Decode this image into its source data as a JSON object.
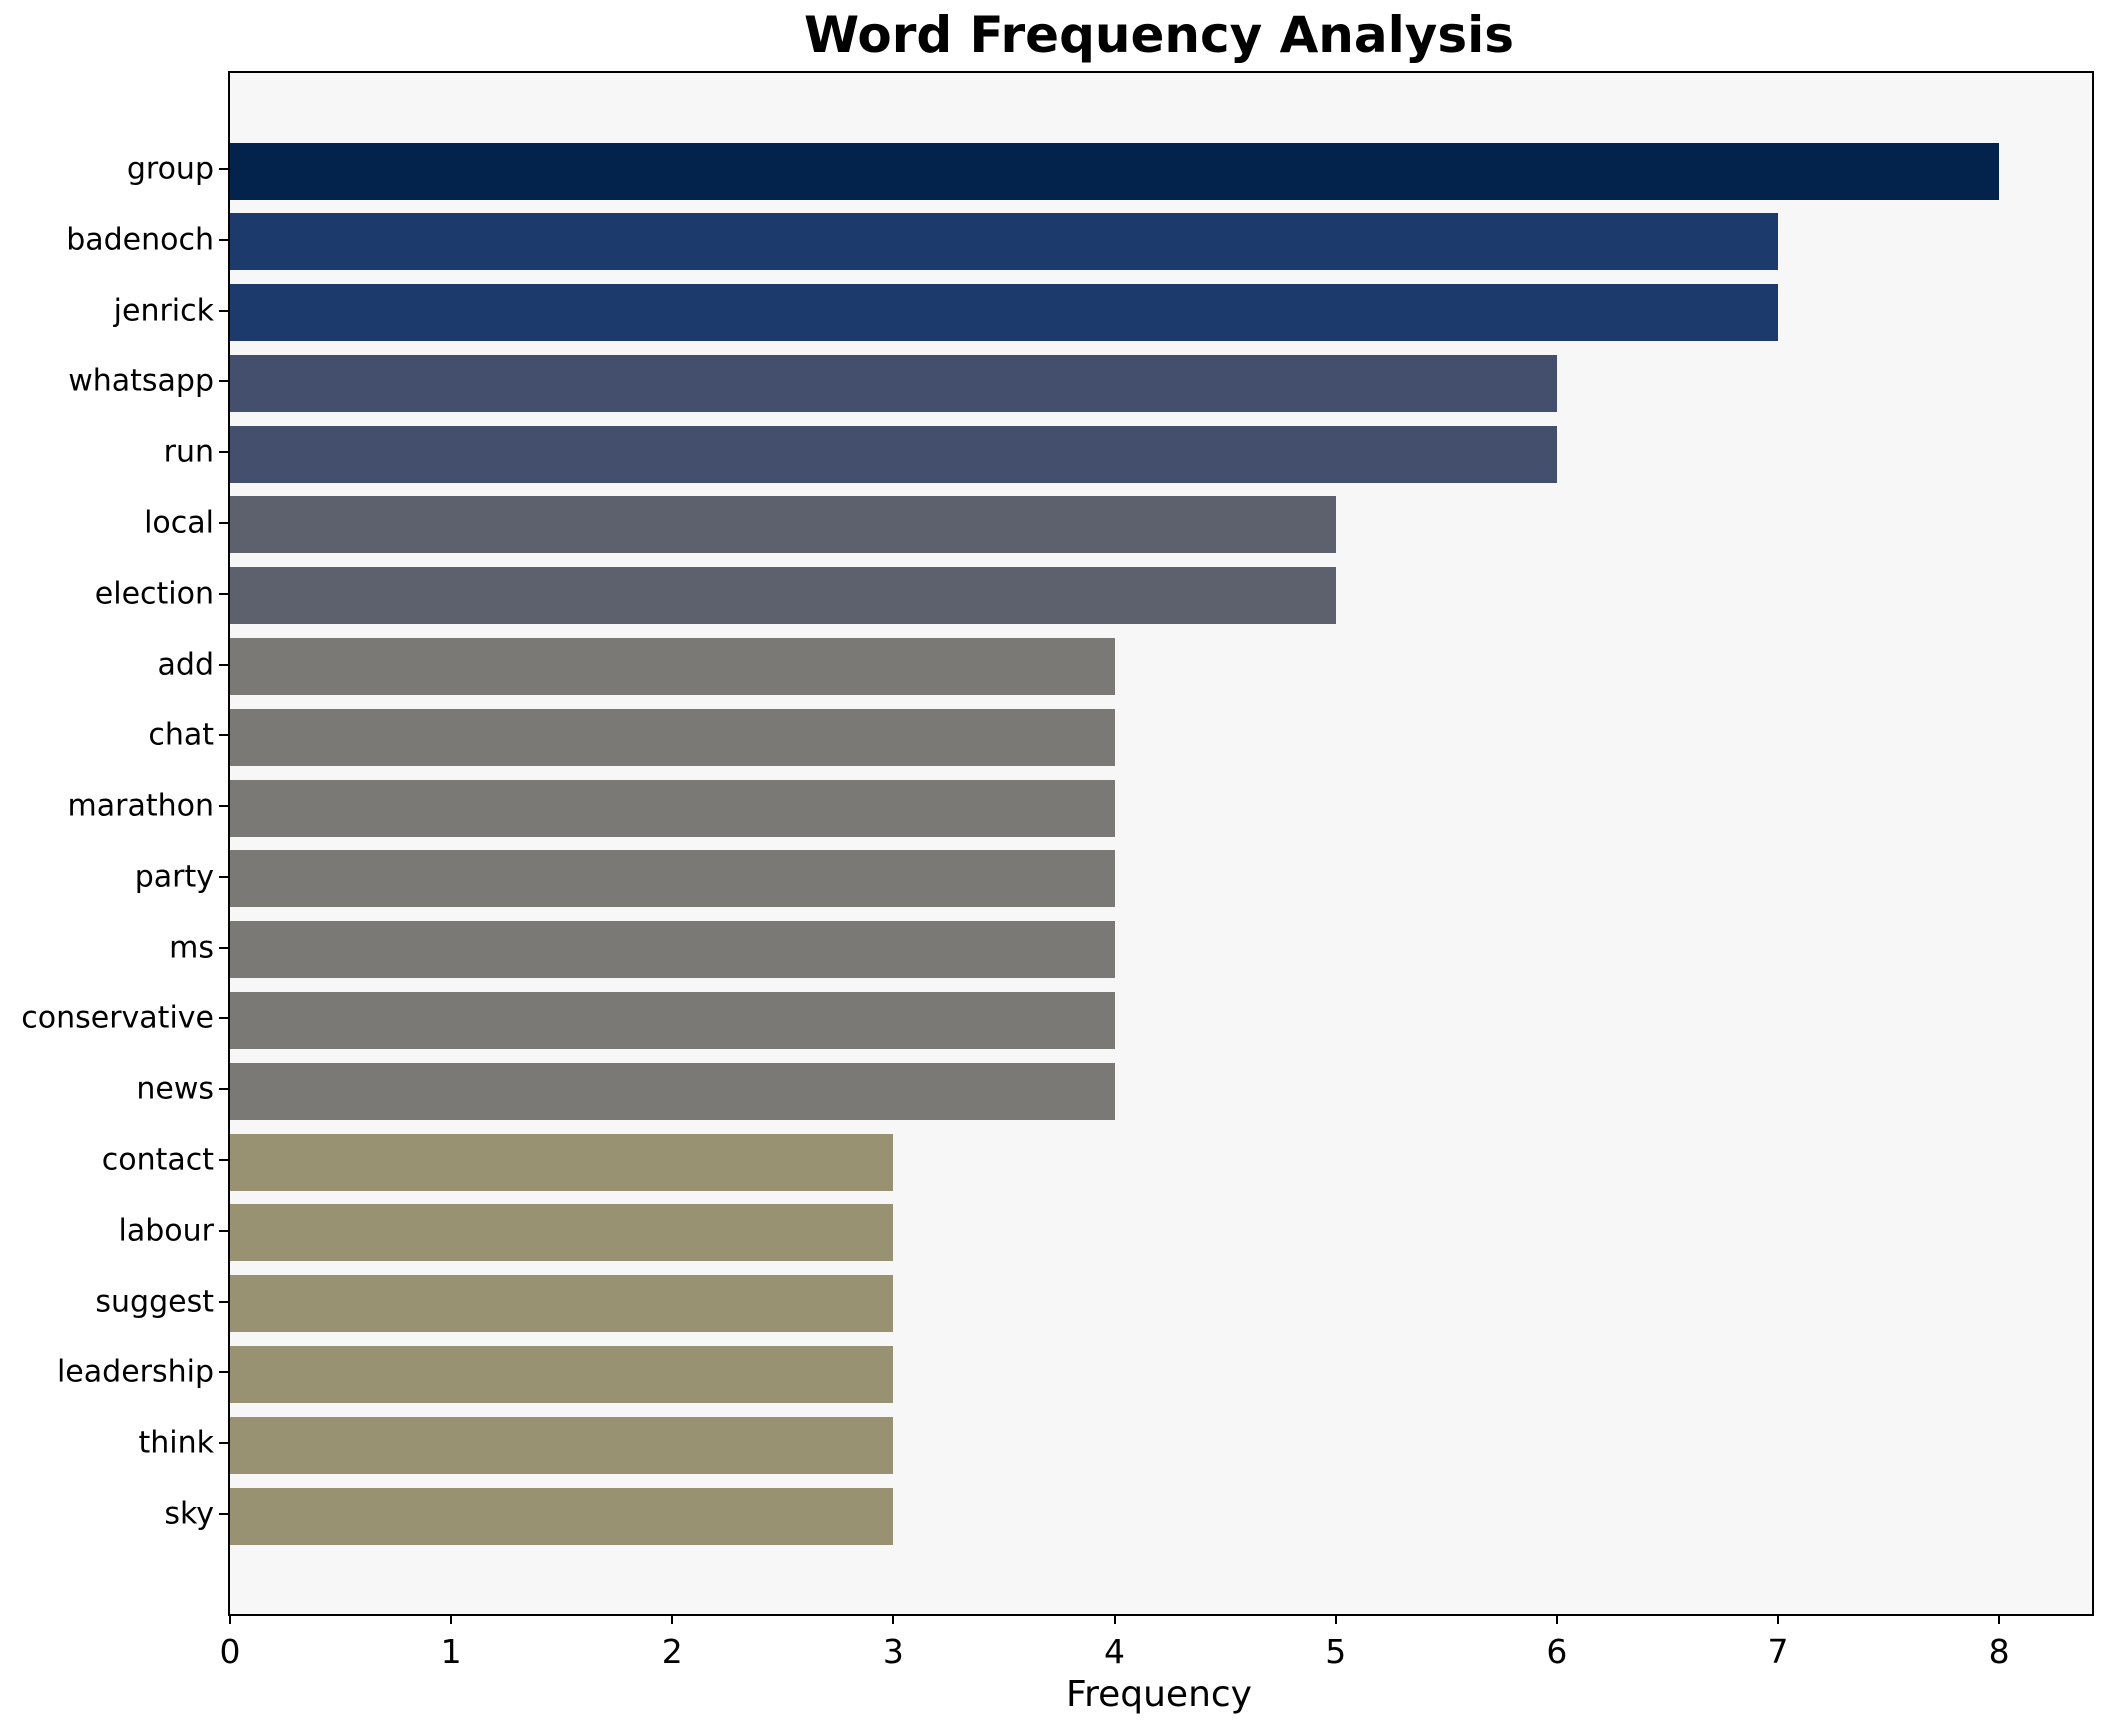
{
  "chart_data": {
    "type": "bar",
    "orientation": "horizontal",
    "title": "Word Frequency Analysis",
    "xlabel": "Frequency",
    "ylabel": "",
    "categories": [
      "group",
      "badenoch",
      "jenrick",
      "whatsapp",
      "run",
      "local",
      "election",
      "add",
      "chat",
      "marathon",
      "party",
      "ms",
      "conservative",
      "news",
      "contact",
      "labour",
      "suggest",
      "leadership",
      "think",
      "sky"
    ],
    "values": [
      8,
      7,
      7,
      6,
      6,
      5,
      5,
      4,
      4,
      4,
      4,
      4,
      4,
      4,
      3,
      3,
      3,
      3,
      3,
      3
    ],
    "bar_colors": [
      "#03224c",
      "#1d3a6d",
      "#1d3a6d",
      "#444f6d",
      "#444f6d",
      "#5d616e",
      "#5d616e",
      "#7a7976",
      "#7a7976",
      "#7a7976",
      "#7a7976",
      "#7a7976",
      "#7a7976",
      "#7a7976",
      "#989272",
      "#989272",
      "#989272",
      "#989272",
      "#989272",
      "#989272"
    ],
    "xlim": [
      0,
      8.42
    ],
    "xticks": [
      0,
      1,
      2,
      3,
      4,
      5,
      6,
      7,
      8
    ],
    "grid": false,
    "legend": null,
    "plot_bg": "#f7f7f7",
    "figure_bg": "#ffffff",
    "spine_color": "#000000"
  }
}
